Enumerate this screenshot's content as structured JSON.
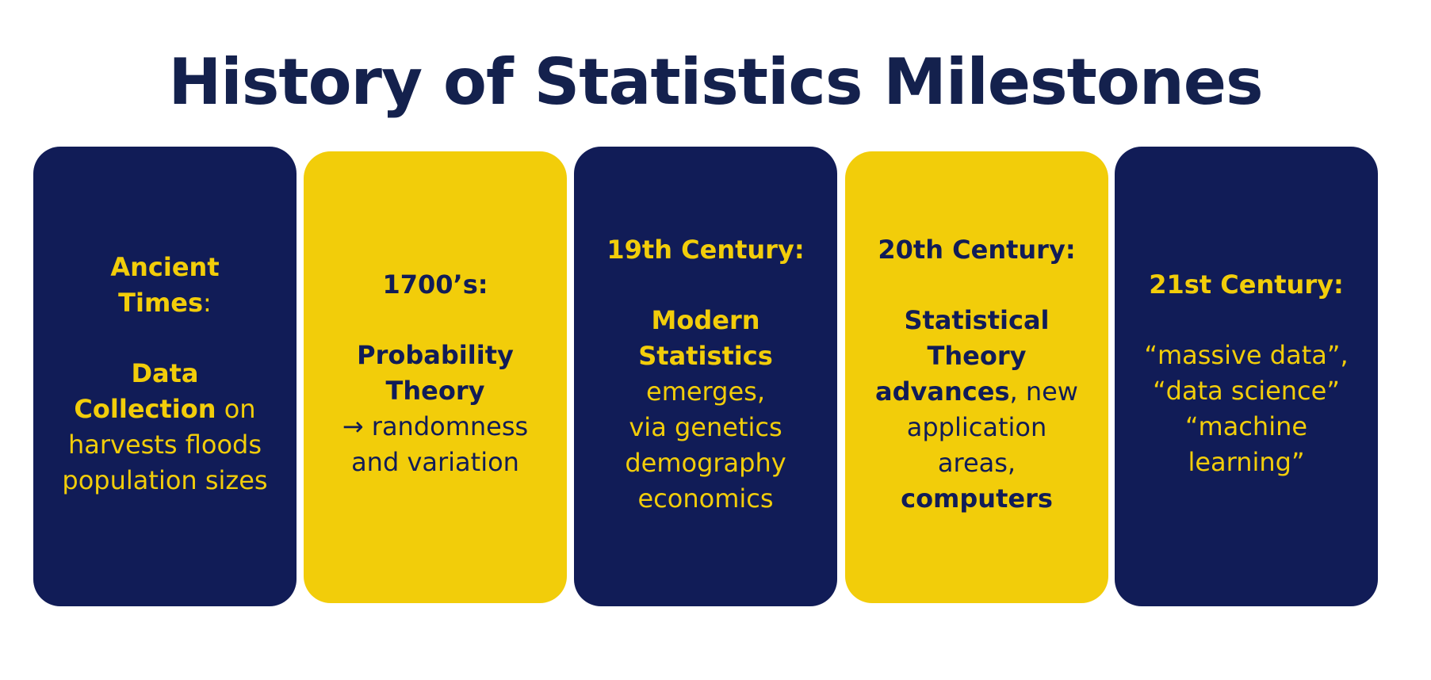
{
  "title": "History of Statistics Milestones",
  "colors": {
    "dark_card": "#111c57",
    "yellow_card": "#f2cd0a",
    "title_text": "#14214d"
  },
  "cards": [
    {
      "heading": [
        "Ancient",
        "Times",
        ":"
      ],
      "bold_terms": [
        "Data",
        "Collection"
      ],
      "text": [
        " on",
        "harvests floods",
        "population sizes"
      ]
    },
    {
      "heading": "1700’s:",
      "bold_terms": [
        "Probability",
        "Theory"
      ],
      "text": [
        "→  randomness",
        "and variation"
      ]
    },
    {
      "heading": "19th Century:",
      "bold_terms": [
        "Modern",
        "Statistics"
      ],
      "text": [
        "emerges,",
        "via genetics",
        "demography",
        "economics"
      ]
    },
    {
      "heading": "20th Century:",
      "bold_terms": [
        "Statistical",
        "Theory",
        "advances",
        "computers"
      ],
      "text": [
        ", new",
        "application",
        "areas,"
      ]
    },
    {
      "heading": "21st Century:",
      "text": [
        "“massive data”,",
        "“data science”",
        "“machine",
        "learning”"
      ]
    }
  ]
}
